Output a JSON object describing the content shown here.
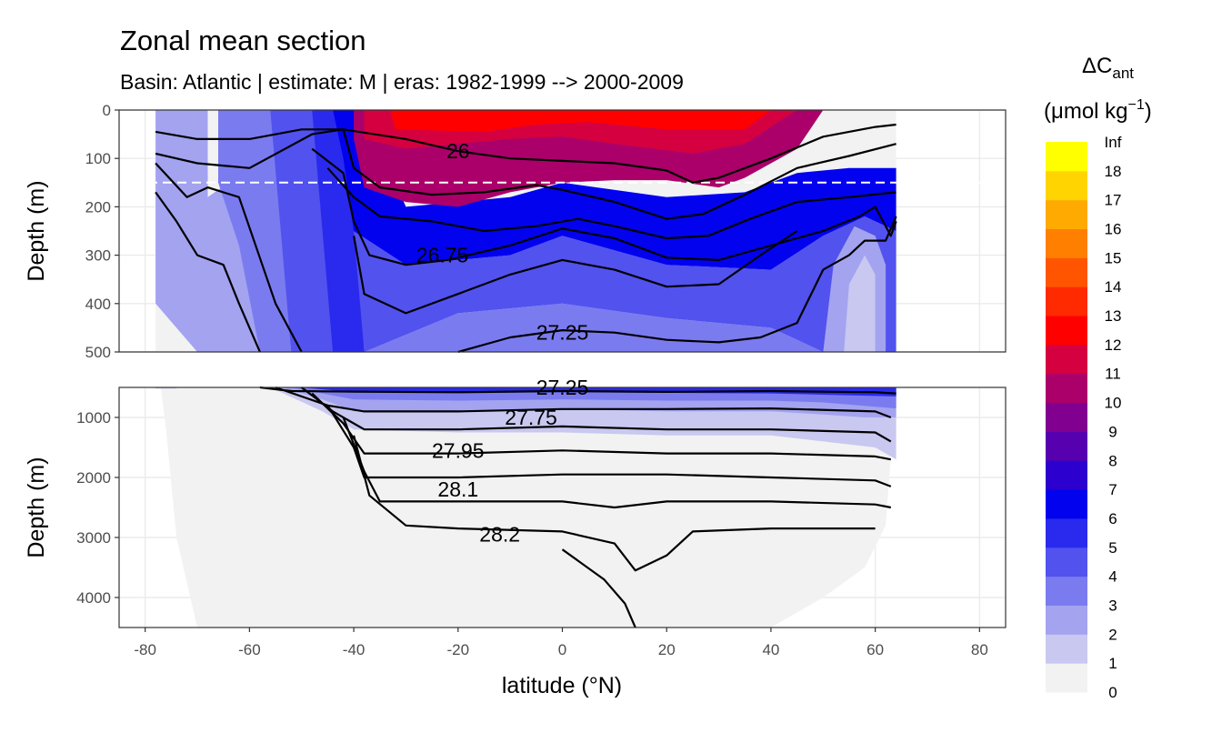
{
  "chart_data": {
    "type": "heatmap",
    "title": "Zonal mean section",
    "subtitle": "Basin: Atlantic | estimate: M  | eras: 1982-1999 --> 2000-2009",
    "xlabel": "latitude (°N)",
    "ylabel": "Depth (m)",
    "xlim": [
      -85,
      85
    ],
    "x_ticks": [
      "-80",
      "-60",
      "-40",
      "-20",
      "0",
      "20",
      "40",
      "60",
      "80"
    ],
    "panels": [
      {
        "name": "upper",
        "ylim": [
          0,
          500
        ],
        "y_ticks": [
          "0",
          "100",
          "200",
          "300",
          "400",
          "500"
        ]
      },
      {
        "name": "lower",
        "ylim": [
          500,
          4500
        ],
        "y_ticks": [
          "1000",
          "2000",
          "3000",
          "4000"
        ]
      }
    ],
    "reference_line_depth": 150,
    "legend": {
      "title_main": "ΔC",
      "title_sub": "ant",
      "title_unit": "(μmol kg",
      "title_exp": "−1",
      "title_close": ")",
      "placement": "right",
      "bins": [
        {
          "label": "0",
          "color": "#f2f2f2"
        },
        {
          "label": "1",
          "color": "#c8c8f0"
        },
        {
          "label": "2",
          "color": "#a3a3f0"
        },
        {
          "label": "3",
          "color": "#7b7bf0"
        },
        {
          "label": "4",
          "color": "#5252ef"
        },
        {
          "label": "5",
          "color": "#2a2aee"
        },
        {
          "label": "6",
          "color": "#0202ef"
        },
        {
          "label": "7",
          "color": "#2c00ce"
        },
        {
          "label": "8",
          "color": "#5700af"
        },
        {
          "label": "9",
          "color": "#820090"
        },
        {
          "label": "10",
          "color": "#ab006a"
        },
        {
          "label": "11",
          "color": "#d50040"
        },
        {
          "label": "12",
          "color": "#ff0000"
        },
        {
          "label": "13",
          "color": "#ff2a00"
        },
        {
          "label": "14",
          "color": "#ff5500"
        },
        {
          "label": "15",
          "color": "#ff7f00"
        },
        {
          "label": "16",
          "color": "#ffaa00"
        },
        {
          "label": "17",
          "color": "#ffd400"
        },
        {
          "label": "18",
          "color": "#ffff00"
        }
      ],
      "top_label": "Inf"
    },
    "isopycnal_labels": [
      {
        "text": "26",
        "lat": -20,
        "depth": 85
      },
      {
        "text": "26.75",
        "lat": -23,
        "depth": 300
      },
      {
        "text": "27.25",
        "lat": 0,
        "depth": 460
      },
      {
        "text": "27.25",
        "lat": 0,
        "depth": 500
      },
      {
        "text": "27.75",
        "lat": -6,
        "depth": 1000
      },
      {
        "text": "27.95",
        "lat": -20,
        "depth": 1550
      },
      {
        "text": "28.1",
        "lat": -20,
        "depth": 2200
      },
      {
        "text": "28.2",
        "lat": -12,
        "depth": 2950
      }
    ],
    "isopycnals": [
      {
        "panel": "upper",
        "points": [
          [
            -78,
            45
          ],
          [
            -70,
            60
          ],
          [
            -60,
            60
          ],
          [
            -50,
            40
          ],
          [
            -42,
            40
          ],
          [
            -30,
            60
          ],
          [
            -20,
            85
          ],
          [
            -10,
            100
          ],
          [
            0,
            105
          ],
          [
            10,
            110
          ],
          [
            20,
            125
          ],
          [
            25,
            150
          ],
          [
            30,
            140
          ],
          [
            40,
            100
          ],
          [
            50,
            55
          ],
          [
            60,
            35
          ],
          [
            64,
            30
          ]
        ]
      },
      {
        "panel": "upper",
        "points": [
          [
            -78,
            90
          ],
          [
            -70,
            110
          ],
          [
            -60,
            120
          ],
          [
            -48,
            50
          ],
          [
            -42,
            40
          ],
          [
            -40,
            120
          ],
          [
            -35,
            160
          ],
          [
            -25,
            175
          ],
          [
            -15,
            170
          ],
          [
            -5,
            155
          ],
          [
            0,
            165
          ],
          [
            10,
            190
          ],
          [
            20,
            225
          ],
          [
            27,
            215
          ],
          [
            35,
            175
          ],
          [
            45,
            120
          ],
          [
            55,
            95
          ],
          [
            64,
            70
          ]
        ]
      },
      {
        "panel": "upper",
        "points": [
          [
            -78,
            110
          ],
          [
            -72,
            180
          ],
          [
            -68,
            160
          ],
          [
            -62,
            180
          ],
          [
            -55,
            400
          ],
          [
            -50,
            500
          ]
        ]
      },
      {
        "panel": "upper",
        "points": [
          [
            -78,
            170
          ],
          [
            -74,
            230
          ],
          [
            -70,
            300
          ],
          [
            -65,
            320
          ],
          [
            -62,
            400
          ],
          [
            -58,
            500
          ]
        ]
      },
      {
        "panel": "upper",
        "points": [
          [
            -45,
            120
          ],
          [
            -40,
            180
          ],
          [
            -35,
            220
          ],
          [
            -25,
            230
          ],
          [
            -15,
            250
          ],
          [
            -5,
            240
          ],
          [
            3,
            225
          ],
          [
            10,
            240
          ],
          [
            20,
            265
          ],
          [
            28,
            260
          ],
          [
            36,
            225
          ],
          [
            45,
            190
          ],
          [
            55,
            180
          ],
          [
            64,
            170
          ]
        ]
      },
      {
        "panel": "upper",
        "points": [
          [
            -48,
            80
          ],
          [
            -42,
            130
          ],
          [
            -40,
            230
          ],
          [
            -37,
            300
          ],
          [
            -30,
            320
          ],
          [
            -22,
            310
          ],
          [
            -10,
            280
          ],
          [
            0,
            245
          ],
          [
            10,
            265
          ],
          [
            20,
            305
          ],
          [
            30,
            310
          ],
          [
            40,
            280
          ],
          [
            50,
            250
          ],
          [
            57,
            220
          ],
          [
            60,
            200
          ],
          [
            63,
            260
          ],
          [
            64,
            230
          ]
        ]
      },
      {
        "panel": "upper",
        "points": [
          [
            -40,
            260
          ],
          [
            -38,
            380
          ],
          [
            -30,
            420
          ],
          [
            -20,
            380
          ],
          [
            -10,
            340
          ],
          [
            0,
            310
          ],
          [
            10,
            330
          ],
          [
            20,
            365
          ],
          [
            30,
            360
          ],
          [
            38,
            300
          ],
          [
            45,
            250
          ]
        ]
      },
      {
        "panel": "upper",
        "points": [
          [
            -20,
            500
          ],
          [
            -10,
            470
          ],
          [
            0,
            455
          ],
          [
            10,
            460
          ],
          [
            20,
            475
          ],
          [
            30,
            480
          ],
          [
            38,
            470
          ],
          [
            45,
            440
          ],
          [
            50,
            330
          ],
          [
            55,
            300
          ],
          [
            58,
            270
          ],
          [
            62,
            270
          ],
          [
            64,
            220
          ]
        ]
      }
    ],
    "deep_isopycnals": [
      {
        "points": [
          [
            -58,
            500
          ],
          [
            -52,
            560
          ],
          [
            -40,
            570
          ],
          [
            -20,
            580
          ],
          [
            0,
            560
          ],
          [
            20,
            575
          ],
          [
            40,
            560
          ],
          [
            60,
            580
          ],
          [
            64,
            600
          ]
        ]
      },
      {
        "points": [
          [
            -55,
            500
          ],
          [
            -45,
            800
          ],
          [
            -38,
            900
          ],
          [
            -20,
            900
          ],
          [
            0,
            860
          ],
          [
            20,
            860
          ],
          [
            40,
            850
          ],
          [
            60,
            900
          ],
          [
            63,
            1000
          ]
        ]
      },
      {
        "points": [
          [
            -50,
            500
          ],
          [
            -44,
            900
          ],
          [
            -38,
            1200
          ],
          [
            -20,
            1200
          ],
          [
            0,
            1150
          ],
          [
            20,
            1200
          ],
          [
            40,
            1200
          ],
          [
            60,
            1250
          ],
          [
            63,
            1400
          ]
        ]
      },
      {
        "points": [
          [
            -48,
            600
          ],
          [
            -42,
            1100
          ],
          [
            -38,
            1600
          ],
          [
            -20,
            1600
          ],
          [
            0,
            1550
          ],
          [
            20,
            1600
          ],
          [
            40,
            1600
          ],
          [
            60,
            1650
          ],
          [
            63,
            1700
          ]
        ]
      },
      {
        "points": [
          [
            -45,
            800
          ],
          [
            -40,
            1500
          ],
          [
            -38,
            2000
          ],
          [
            -20,
            2000
          ],
          [
            0,
            1950
          ],
          [
            20,
            1950
          ],
          [
            40,
            2000
          ],
          [
            60,
            2050
          ],
          [
            63,
            2150
          ]
        ]
      },
      {
        "points": [
          [
            -42,
            1000
          ],
          [
            -38,
            1900
          ],
          [
            -35,
            2400
          ],
          [
            -20,
            2400
          ],
          [
            0,
            2400
          ],
          [
            10,
            2500
          ],
          [
            20,
            2400
          ],
          [
            40,
            2400
          ],
          [
            60,
            2450
          ],
          [
            63,
            2500
          ]
        ]
      },
      {
        "points": [
          [
            -40,
            1300
          ],
          [
            -37,
            2300
          ],
          [
            -30,
            2800
          ],
          [
            -20,
            2850
          ],
          [
            0,
            2900
          ],
          [
            10,
            3100
          ],
          [
            14,
            3550
          ],
          [
            20,
            3300
          ],
          [
            25,
            2900
          ],
          [
            40,
            2850
          ],
          [
            55,
            2850
          ],
          [
            60,
            2850
          ]
        ]
      },
      {
        "points": [
          [
            0,
            3200
          ],
          [
            8,
            3700
          ],
          [
            12,
            4100
          ],
          [
            14,
            4500
          ]
        ]
      }
    ],
    "fill_upper": [
      {
        "bin": 10,
        "points": [
          [
            -40,
            0
          ],
          [
            -40,
            60
          ],
          [
            -38,
            160
          ],
          [
            -30,
            190
          ],
          [
            -20,
            200
          ],
          [
            -10,
            170
          ],
          [
            0,
            150
          ],
          [
            10,
            145
          ],
          [
            20,
            145
          ],
          [
            30,
            160
          ],
          [
            35,
            140
          ],
          [
            45,
            80
          ],
          [
            50,
            0
          ]
        ]
      },
      {
        "bin": 11,
        "points": [
          [
            -38,
            0
          ],
          [
            -38,
            60
          ],
          [
            -30,
            80
          ],
          [
            -20,
            70
          ],
          [
            -10,
            60
          ],
          [
            0,
            55
          ],
          [
            10,
            70
          ],
          [
            25,
            90
          ],
          [
            35,
            70
          ],
          [
            45,
            0
          ]
        ]
      },
      {
        "bin": 12,
        "points": [
          [
            -33,
            0
          ],
          [
            -32,
            40
          ],
          [
            -15,
            45
          ],
          [
            -5,
            30
          ],
          [
            5,
            25
          ],
          [
            20,
            40
          ],
          [
            35,
            40
          ],
          [
            40,
            0
          ]
        ]
      }
    ],
    "note": "Vertical axis split: upper panel 0–500 m, lower panel 500–4500 m. Section plotted from about -78°N to 64°N."
  }
}
